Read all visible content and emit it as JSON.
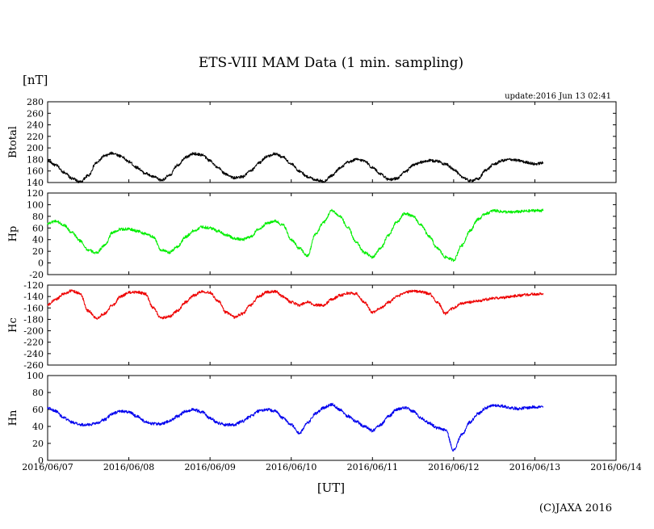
{
  "chart_data": {
    "type": "line",
    "title": "ETS-VIII MAM Data (1 min. sampling)",
    "unit_label": "[nT]",
    "update_label": "update:2016 Jun 13 02:41",
    "xlabel": "[UT]",
    "copyright": "(C)JAXA 2016",
    "x_ticks": [
      "2016/06/07",
      "2016/06/08",
      "2016/06/09",
      "2016/06/10",
      "2016/06/11",
      "2016/06/12",
      "2016/06/13",
      "2016/06/14"
    ],
    "xlim": [
      0,
      7
    ],
    "grid": false,
    "panels": [
      {
        "ylabel": "Btotal",
        "color": "#000000",
        "ylim": [
          140,
          280
        ],
        "yticks": [
          "140",
          "160",
          "180",
          "200",
          "220",
          "240",
          "260",
          "280"
        ],
        "x": [
          0.0,
          0.1,
          0.2,
          0.3,
          0.4,
          0.5,
          0.6,
          0.7,
          0.8,
          0.9,
          1.0,
          1.1,
          1.2,
          1.3,
          1.4,
          1.5,
          1.6,
          1.7,
          1.8,
          1.9,
          2.0,
          2.1,
          2.2,
          2.3,
          2.4,
          2.5,
          2.6,
          2.7,
          2.8,
          2.9,
          3.0,
          3.1,
          3.2,
          3.3,
          3.4,
          3.5,
          3.6,
          3.7,
          3.8,
          3.9,
          4.0,
          4.1,
          4.2,
          4.3,
          4.4,
          4.5,
          4.6,
          4.7,
          4.8,
          4.9,
          5.0,
          5.1,
          5.2,
          5.3,
          5.4,
          5.5,
          5.6,
          5.7,
          5.8,
          5.9,
          6.0,
          6.1
        ],
        "values": [
          178,
          170,
          158,
          147,
          141,
          152,
          174,
          186,
          191,
          186,
          176,
          166,
          156,
          150,
          144,
          152,
          170,
          184,
          190,
          188,
          178,
          165,
          154,
          148,
          150,
          160,
          174,
          185,
          190,
          184,
          172,
          160,
          150,
          145,
          142,
          152,
          165,
          175,
          180,
          178,
          166,
          155,
          145,
          147,
          158,
          170,
          175,
          178,
          177,
          172,
          163,
          150,
          143,
          146,
          162,
          172,
          178,
          180,
          178,
          175,
          172,
          174
        ]
      },
      {
        "ylabel": "Hp",
        "color": "#00ee00",
        "ylim": [
          -20,
          120
        ],
        "yticks": [
          "-20",
          "0",
          "20",
          "40",
          "60",
          "80",
          "100",
          "120"
        ],
        "x": [
          0.0,
          0.1,
          0.2,
          0.3,
          0.4,
          0.5,
          0.6,
          0.7,
          0.8,
          0.9,
          1.0,
          1.1,
          1.2,
          1.3,
          1.4,
          1.5,
          1.6,
          1.7,
          1.8,
          1.9,
          2.0,
          2.1,
          2.2,
          2.3,
          2.4,
          2.5,
          2.6,
          2.7,
          2.8,
          2.9,
          3.0,
          3.1,
          3.2,
          3.3,
          3.4,
          3.5,
          3.6,
          3.7,
          3.8,
          3.9,
          4.0,
          4.1,
          4.2,
          4.3,
          4.4,
          4.5,
          4.6,
          4.7,
          4.8,
          4.9,
          5.0,
          5.1,
          5.2,
          5.3,
          5.4,
          5.5,
          5.6,
          5.7,
          5.8,
          5.9,
          6.0,
          6.1
        ],
        "values": [
          68,
          72,
          65,
          52,
          38,
          22,
          17,
          30,
          52,
          58,
          58,
          55,
          50,
          45,
          22,
          18,
          28,
          45,
          55,
          62,
          60,
          55,
          48,
          42,
          40,
          45,
          58,
          68,
          72,
          65,
          40,
          25,
          12,
          50,
          70,
          90,
          80,
          60,
          35,
          18,
          10,
          25,
          48,
          70,
          85,
          80,
          65,
          45,
          25,
          10,
          5,
          30,
          55,
          75,
          85,
          90,
          88,
          87,
          88,
          89,
          90,
          90
        ]
      },
      {
        "ylabel": "Hc",
        "color": "#ee0000",
        "ylim": [
          -260,
          -120
        ],
        "yticks": [
          "-260",
          "-240",
          "-220",
          "-200",
          "-180",
          "-160",
          "-140",
          "-120"
        ],
        "x": [
          0.0,
          0.1,
          0.2,
          0.3,
          0.4,
          0.5,
          0.6,
          0.7,
          0.8,
          0.9,
          1.0,
          1.1,
          1.2,
          1.3,
          1.4,
          1.5,
          1.6,
          1.7,
          1.8,
          1.9,
          2.0,
          2.1,
          2.2,
          2.3,
          2.4,
          2.5,
          2.6,
          2.7,
          2.8,
          2.9,
          3.0,
          3.1,
          3.2,
          3.3,
          3.4,
          3.5,
          3.6,
          3.7,
          3.8,
          3.9,
          4.0,
          4.1,
          4.2,
          4.3,
          4.4,
          4.5,
          4.6,
          4.7,
          4.8,
          4.9,
          5.0,
          5.1,
          5.2,
          5.3,
          5.4,
          5.5,
          5.6,
          5.7,
          5.8,
          5.9,
          6.0,
          6.1
        ],
        "values": [
          -155,
          -145,
          -135,
          -130,
          -135,
          -165,
          -178,
          -170,
          -155,
          -140,
          -133,
          -132,
          -135,
          -160,
          -178,
          -175,
          -165,
          -150,
          -138,
          -131,
          -133,
          -148,
          -168,
          -176,
          -170,
          -155,
          -140,
          -132,
          -131,
          -140,
          -150,
          -155,
          -150,
          -155,
          -155,
          -145,
          -138,
          -134,
          -135,
          -150,
          -168,
          -160,
          -150,
          -140,
          -133,
          -130,
          -132,
          -135,
          -150,
          -170,
          -160,
          -152,
          -150,
          -148,
          -145,
          -143,
          -142,
          -140,
          -138,
          -137,
          -136,
          -135
        ]
      },
      {
        "ylabel": "Hn",
        "color": "#0000ee",
        "ylim": [
          0,
          100
        ],
        "yticks": [
          "0",
          "20",
          "40",
          "60",
          "80",
          "100"
        ],
        "x": [
          0.0,
          0.1,
          0.2,
          0.3,
          0.4,
          0.5,
          0.6,
          0.7,
          0.8,
          0.9,
          1.0,
          1.1,
          1.2,
          1.3,
          1.4,
          1.5,
          1.6,
          1.7,
          1.8,
          1.9,
          2.0,
          2.1,
          2.2,
          2.3,
          2.4,
          2.5,
          2.6,
          2.7,
          2.8,
          2.9,
          3.0,
          3.1,
          3.2,
          3.3,
          3.4,
          3.5,
          3.6,
          3.7,
          3.8,
          3.9,
          4.0,
          4.1,
          4.2,
          4.3,
          4.4,
          4.5,
          4.6,
          4.7,
          4.8,
          4.9,
          5.0,
          5.1,
          5.2,
          5.3,
          5.4,
          5.5,
          5.6,
          5.7,
          5.8,
          5.9,
          6.0,
          6.1
        ],
        "values": [
          62,
          58,
          50,
          45,
          42,
          42,
          44,
          48,
          55,
          58,
          57,
          52,
          46,
          43,
          43,
          46,
          52,
          58,
          60,
          57,
          50,
          44,
          42,
          42,
          46,
          52,
          58,
          60,
          58,
          50,
          42,
          32,
          44,
          55,
          62,
          66,
          60,
          52,
          46,
          40,
          35,
          42,
          52,
          60,
          62,
          58,
          50,
          44,
          38,
          36,
          12,
          30,
          45,
          55,
          62,
          65,
          64,
          62,
          61,
          62,
          63,
          63
        ]
      }
    ]
  }
}
